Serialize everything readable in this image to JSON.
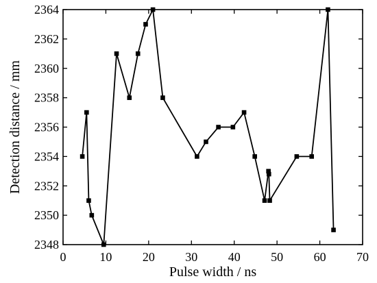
{
  "chart_data": {
    "type": "line",
    "title": "",
    "xlabel": "Pulse width / ns",
    "ylabel": "Detection distance / mm",
    "xlim": [
      0,
      70
    ],
    "ylim": [
      2348,
      2364
    ],
    "x_ticks": [
      0,
      10,
      20,
      30,
      40,
      50,
      60,
      70
    ],
    "y_ticks": [
      2348,
      2350,
      2352,
      2354,
      2356,
      2358,
      2360,
      2362,
      2364
    ],
    "grid": false,
    "legend": "none",
    "series": [
      {
        "color": "#000000",
        "marker": "square",
        "points": [
          [
            4.5,
            2354
          ],
          [
            5.5,
            2357
          ],
          [
            6.0,
            2351
          ],
          [
            6.7,
            2350
          ],
          [
            9.5,
            2348
          ],
          [
            12.5,
            2361
          ],
          [
            15.5,
            2358
          ],
          [
            17.5,
            2361
          ],
          [
            19.3,
            2363
          ],
          [
            21.0,
            2364
          ],
          [
            23.3,
            2358
          ],
          [
            31.3,
            2354
          ],
          [
            33.4,
            2355
          ],
          [
            36.3,
            2356
          ],
          [
            39.7,
            2356
          ],
          [
            42.3,
            2357
          ],
          [
            44.8,
            2354
          ],
          [
            47.1,
            2351
          ],
          [
            48.0,
            2353
          ],
          [
            48.1,
            2352.8
          ],
          [
            48.3,
            2351
          ],
          [
            54.6,
            2354
          ],
          [
            58.1,
            2354
          ],
          [
            61.9,
            2364
          ],
          [
            63.2,
            2349
          ]
        ]
      }
    ]
  }
}
